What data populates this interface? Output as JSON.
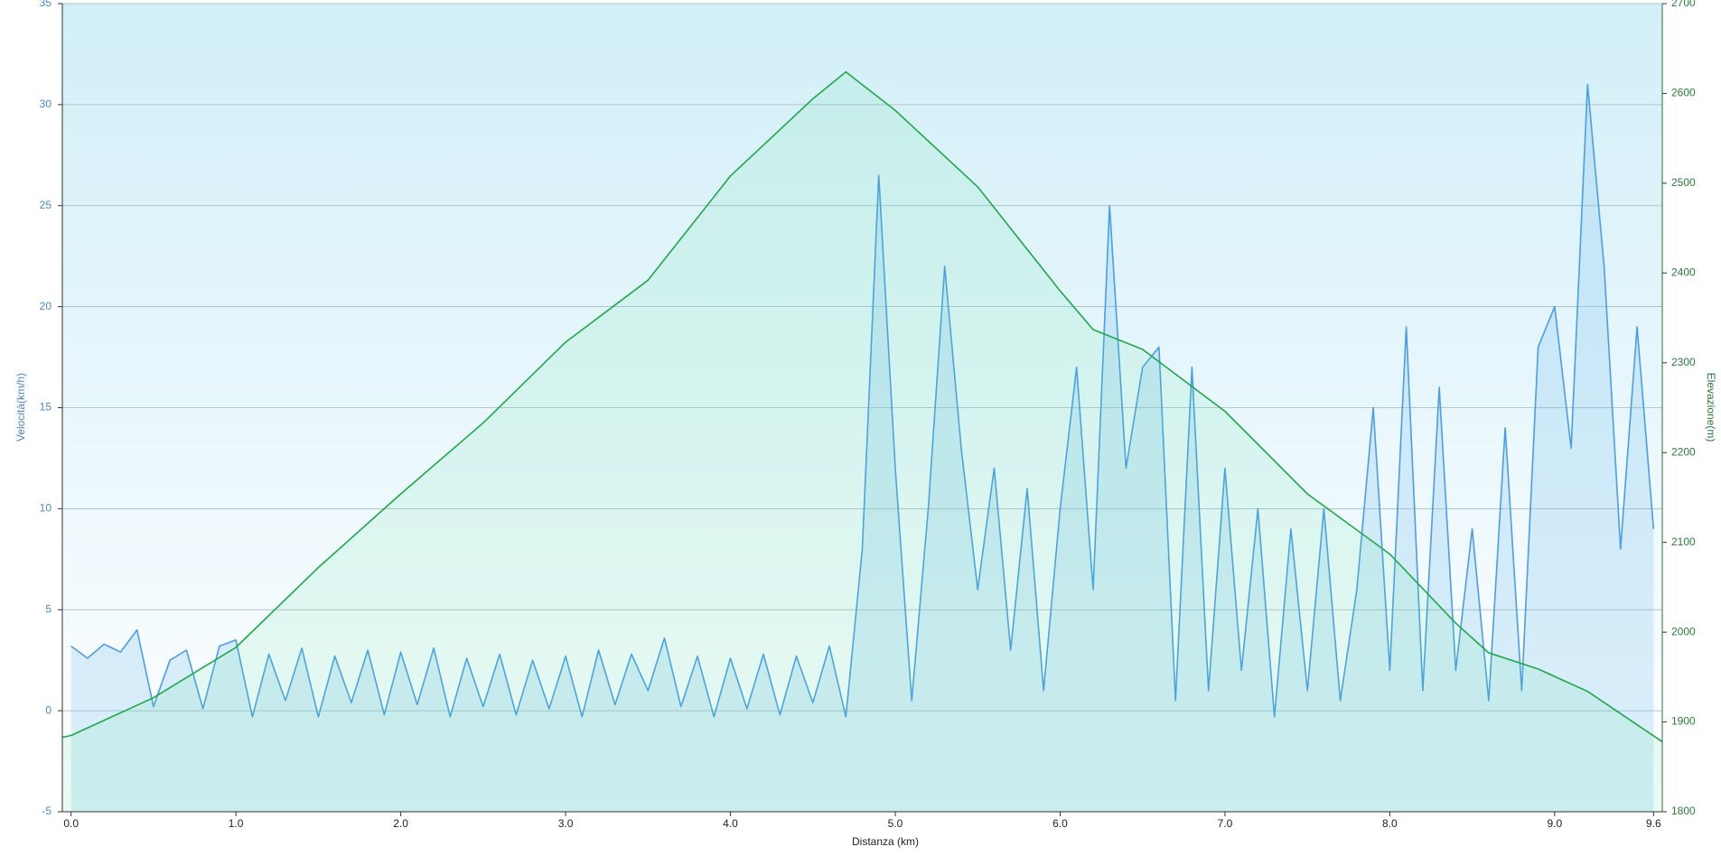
{
  "chart_data": {
    "type": "line",
    "xlabel": "Distanza  (km)",
    "ylabel": "Velocità(km/h)",
    "y2label": "Elevazione(m)",
    "xlim": [
      -0.053,
      9.653
    ],
    "ylim": [
      -5,
      35
    ],
    "y2lim": [
      1800,
      2700
    ],
    "xticks": [
      {
        "value": 0,
        "label": "0.0"
      },
      {
        "value": 1,
        "label": "1.0"
      },
      {
        "value": 2,
        "label": "2.0"
      },
      {
        "value": 3,
        "label": "3.0"
      },
      {
        "value": 4,
        "label": "4.0"
      },
      {
        "value": 5,
        "label": "5.0"
      },
      {
        "value": 6,
        "label": "6.0"
      },
      {
        "value": 7,
        "label": "7.0"
      },
      {
        "value": 8,
        "label": "8.0"
      },
      {
        "value": 9,
        "label": "9.0"
      },
      {
        "value": 9.6,
        "label": "9.6"
      }
    ],
    "yticks": [
      -5,
      0,
      5,
      10,
      15,
      20,
      25,
      30,
      35
    ],
    "y2ticks": [
      1800,
      1900,
      2000,
      2100,
      2200,
      2300,
      2400,
      2500,
      2600,
      2700
    ],
    "grid": true,
    "series": [
      {
        "color": "#4a9de6",
        "axis": "y",
        "x": [
          0.0,
          0.1,
          0.2,
          0.3,
          0.4,
          0.5,
          0.6,
          0.7,
          0.8,
          0.9,
          1.0,
          1.1,
          1.2,
          1.3,
          1.4,
          1.5,
          1.6,
          1.7,
          1.8,
          1.9,
          2.0,
          2.1,
          2.2,
          2.3,
          2.4,
          2.5,
          2.6,
          2.7,
          2.8,
          2.9,
          3.0,
          3.1,
          3.2,
          3.3,
          3.4,
          3.5,
          3.6,
          3.7,
          3.8,
          3.9,
          4.0,
          4.1,
          4.2,
          4.3,
          4.4,
          4.5,
          4.6,
          4.7,
          4.8,
          4.9,
          5.0,
          5.1,
          5.2,
          5.3,
          5.4,
          5.5,
          5.6,
          5.7,
          5.8,
          5.9,
          6.0,
          6.1,
          6.2,
          6.3,
          6.4,
          6.5,
          6.6,
          6.7,
          6.8,
          6.9,
          7.0,
          7.1,
          7.2,
          7.3,
          7.4,
          7.5,
          7.6,
          7.7,
          7.8,
          7.9,
          8.0,
          8.1,
          8.2,
          8.3,
          8.4,
          8.5,
          8.6,
          8.7,
          8.8,
          8.9,
          9.0,
          9.1,
          9.2,
          9.3,
          9.4,
          9.5,
          9.6
        ],
        "values": [
          3.2,
          2.6,
          3.3,
          2.9,
          4.0,
          0.2,
          2.5,
          3.0,
          0.1,
          3.2,
          3.5,
          -0.3,
          2.8,
          0.5,
          3.1,
          -0.3,
          2.7,
          0.4,
          3.0,
          -0.2,
          2.9,
          0.3,
          3.1,
          -0.3,
          2.6,
          0.2,
          2.8,
          -0.2,
          2.5,
          0.1,
          2.7,
          -0.3,
          3.0,
          0.3,
          2.8,
          1.0,
          3.6,
          0.2,
          2.7,
          -0.3,
          2.6,
          0.1,
          2.8,
          -0.2,
          2.7,
          0.4,
          3.2,
          -0.3,
          8.0,
          26.5,
          12.0,
          0.5,
          10.0,
          22.0,
          13.0,
          6.0,
          12.0,
          3.0,
          11.0,
          1.0,
          10.0,
          17.0,
          6.0,
          25.0,
          12.0,
          17.0,
          18.0,
          0.5,
          17.0,
          1.0,
          12.0,
          2.0,
          10.0,
          -0.3,
          9.0,
          1.0,
          10.0,
          0.5,
          6.0,
          15.0,
          2.0,
          19.0,
          1.0,
          16.0,
          2.0,
          9.0,
          0.5,
          14.0,
          1.0,
          18.0,
          20.0,
          13.0,
          31.0,
          22.0,
          8.0,
          19.0,
          9.0
        ]
      },
      {
        "color": "#1ea84a",
        "axis": "y2",
        "x": [
          -0.053,
          0.0,
          0.5,
          1.0,
          1.5,
          2.0,
          2.5,
          3.0,
          3.5,
          4.0,
          4.5,
          4.7,
          5.0,
          5.5,
          6.0,
          6.2,
          6.5,
          7.0,
          7.5,
          8.0,
          8.4,
          8.6,
          8.9,
          9.2,
          9.653
        ],
        "values": [
          1883,
          1885,
          1927,
          1983,
          2072,
          2154,
          2233,
          2323,
          2392,
          2508,
          2594,
          2624,
          2581,
          2496,
          2380,
          2337,
          2315,
          2246,
          2154,
          2087,
          2010,
          1977,
          1959,
          1934,
          1878
        ]
      }
    ]
  }
}
